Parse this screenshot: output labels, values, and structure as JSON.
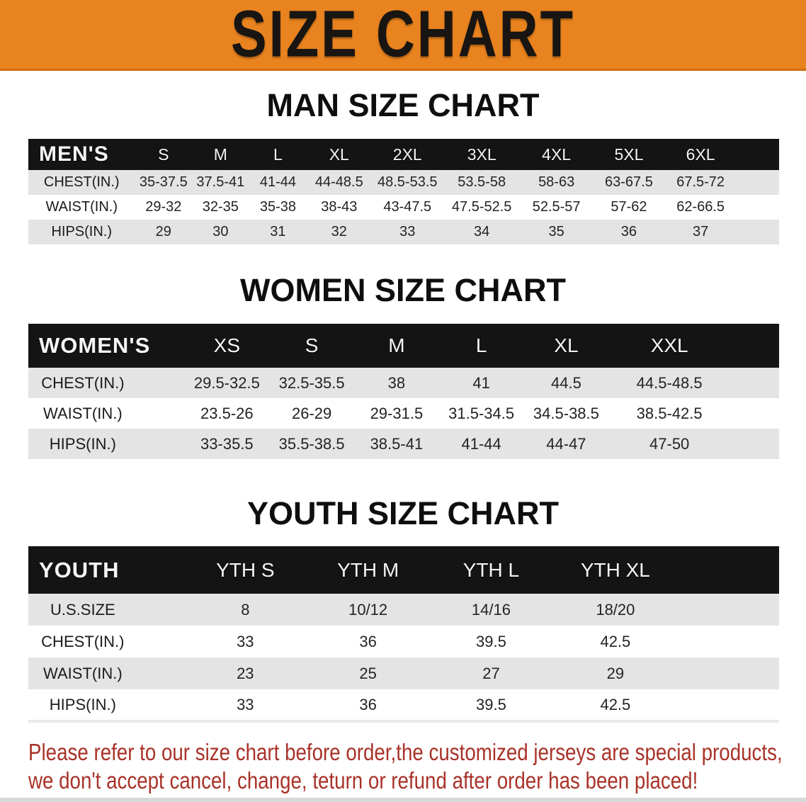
{
  "banner": {
    "title": "SIZE CHART",
    "bg_color": "#e8831f",
    "text_color": "#181512"
  },
  "sections": [
    {
      "heading": "MAN SIZE CHART",
      "header_label": "MEN'S",
      "columns": [
        "S",
        "M",
        "L",
        "XL",
        "2XL",
        "3XL",
        "4XL",
        "5XL",
        "6XL"
      ],
      "rows": [
        {
          "label": "CHEST(IN.)",
          "values": [
            "35-37.5",
            "37.5-41",
            "41-44",
            "44-48.5",
            "48.5-53.5",
            "53.5-58",
            "58-63",
            "63-67.5",
            "67.5-72"
          ]
        },
        {
          "label": "WAIST(IN.)",
          "values": [
            "29-32",
            "32-35",
            "35-38",
            "38-43",
            "43-47.5",
            "47.5-52.5",
            "52.5-57",
            "57-62",
            "62-66.5"
          ]
        },
        {
          "label": "HIPS(IN.)",
          "values": [
            "29",
            "30",
            "31",
            "32",
            "33",
            "34",
            "35",
            "36",
            "37"
          ]
        }
      ]
    },
    {
      "heading": "WOMEN SIZE CHART",
      "header_label": "WOMEN'S",
      "columns": [
        "XS",
        "S",
        "M",
        "L",
        "XL",
        "XXL"
      ],
      "rows": [
        {
          "label": "CHEST(IN.)",
          "values": [
            "29.5-32.5",
            "32.5-35.5",
            "38",
            "41",
            "44.5",
            "44.5-48.5"
          ]
        },
        {
          "label": "WAIST(IN.)",
          "values": [
            "23.5-26",
            "26-29",
            "29-31.5",
            "31.5-34.5",
            "34.5-38.5",
            "38.5-42.5"
          ]
        },
        {
          "label": "HIPS(IN.)",
          "values": [
            "33-35.5",
            "35.5-38.5",
            "38.5-41",
            "41-44",
            "44-47",
            "47-50"
          ]
        }
      ]
    },
    {
      "heading": "YOUTH SIZE CHART",
      "header_label": "YOUTH",
      "columns": [
        "YTH S",
        "YTH M",
        "YTH L",
        "YTH XL"
      ],
      "rows": [
        {
          "label": "U.S.SIZE",
          "values": [
            "8",
            "10/12",
            "14/16",
            "18/20"
          ]
        },
        {
          "label": "CHEST(IN.)",
          "values": [
            "33",
            "36",
            "39.5",
            "42.5"
          ]
        },
        {
          "label": "WAIST(IN.)",
          "values": [
            "23",
            "25",
            "27",
            "29"
          ]
        },
        {
          "label": "HIPS(IN.)",
          "values": [
            "33",
            "36",
            "39.5",
            "42.5"
          ]
        }
      ]
    }
  ],
  "disclaimer": {
    "line1": "Please refer to our size chart before order,the customized jerseys are special products,",
    "line2": "we don't accept cancel, change, teturn or refund after order has been placed!",
    "color": "#a93228"
  },
  "colors": {
    "header_bar": "#141414",
    "row_stripe": "#e4e4e4",
    "row_plain": "#ffffff"
  }
}
